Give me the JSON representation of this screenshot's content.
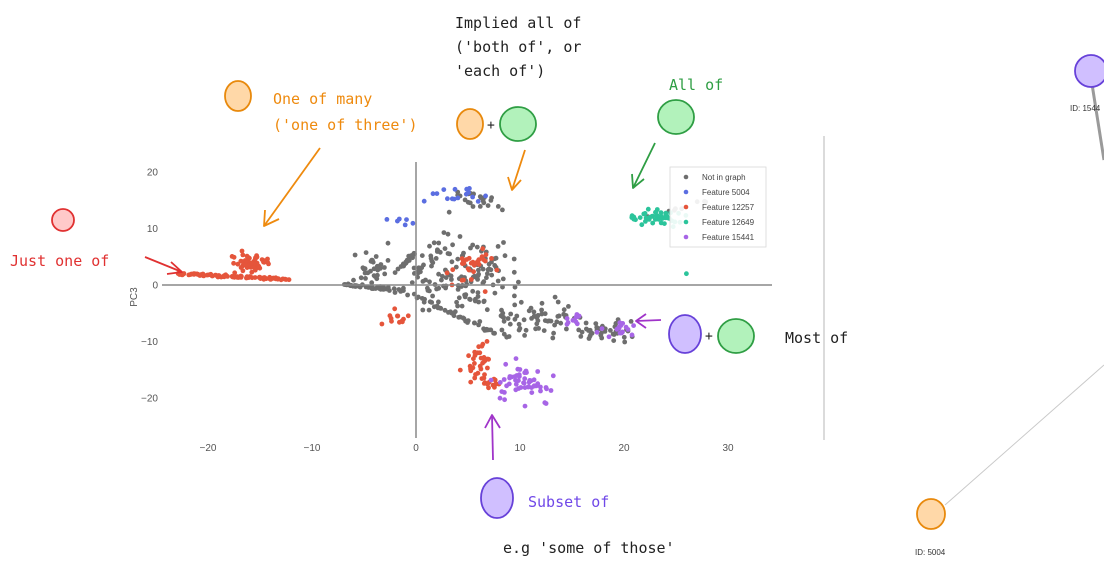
{
  "chart_data": {
    "type": "scatter",
    "ylabel": "PC3",
    "xlim": [
      -24,
      34
    ],
    "ylim": [
      -26,
      23
    ],
    "x_ticks": [
      -20,
      -10,
      0,
      10,
      20,
      30
    ],
    "y_ticks": [
      20,
      10,
      0,
      -10,
      -20
    ],
    "grid": false,
    "zero_lines": true,
    "legend_placement": "top-right",
    "series": [
      {
        "name": "Not in graph",
        "color": "#6e6e6e"
      },
      {
        "name": "Feature 5004",
        "color": "#5b6ee1"
      },
      {
        "name": "Feature 12257",
        "color": "#e5553b"
      },
      {
        "name": "Feature 12649",
        "color": "#2bc49b"
      },
      {
        "name": "Feature 15441",
        "color": "#a765e6"
      }
    ]
  },
  "annotations": {
    "just_one_of": {
      "text": "Just one of",
      "color": "#e03131"
    },
    "one_of_many": {
      "line1": "One of many",
      "line2": "('one of three')",
      "color": "#ee8a0e"
    },
    "implied_all_of": {
      "line1": "Implied all of",
      "line2": "('both of', or",
      "line3": "'each of')",
      "color": "#222222",
      "plus": "+"
    },
    "all_of": {
      "text": "All of",
      "color": "#2f9e44"
    },
    "most_of": {
      "text": "Most of",
      "color": "#222222",
      "plus": "+"
    },
    "subset_of": {
      "text": "Subset of",
      "color": "#7048e8"
    },
    "example": {
      "text": "e.g 'some of those'",
      "color": "#222222"
    }
  },
  "graph_nodes": {
    "top_id": "ID: 1544",
    "bottom_id": "ID: 5004"
  },
  "colors": {
    "orange_fill": "#ffd8a8",
    "orange_stroke": "#e8890c",
    "green_fill": "#b2f2bb",
    "green_stroke": "#2f9e44",
    "red_fill": "#ffc9c9",
    "red_stroke": "#e03131",
    "purple_fill": "#d0bfff",
    "purple_stroke": "#6741d9"
  }
}
